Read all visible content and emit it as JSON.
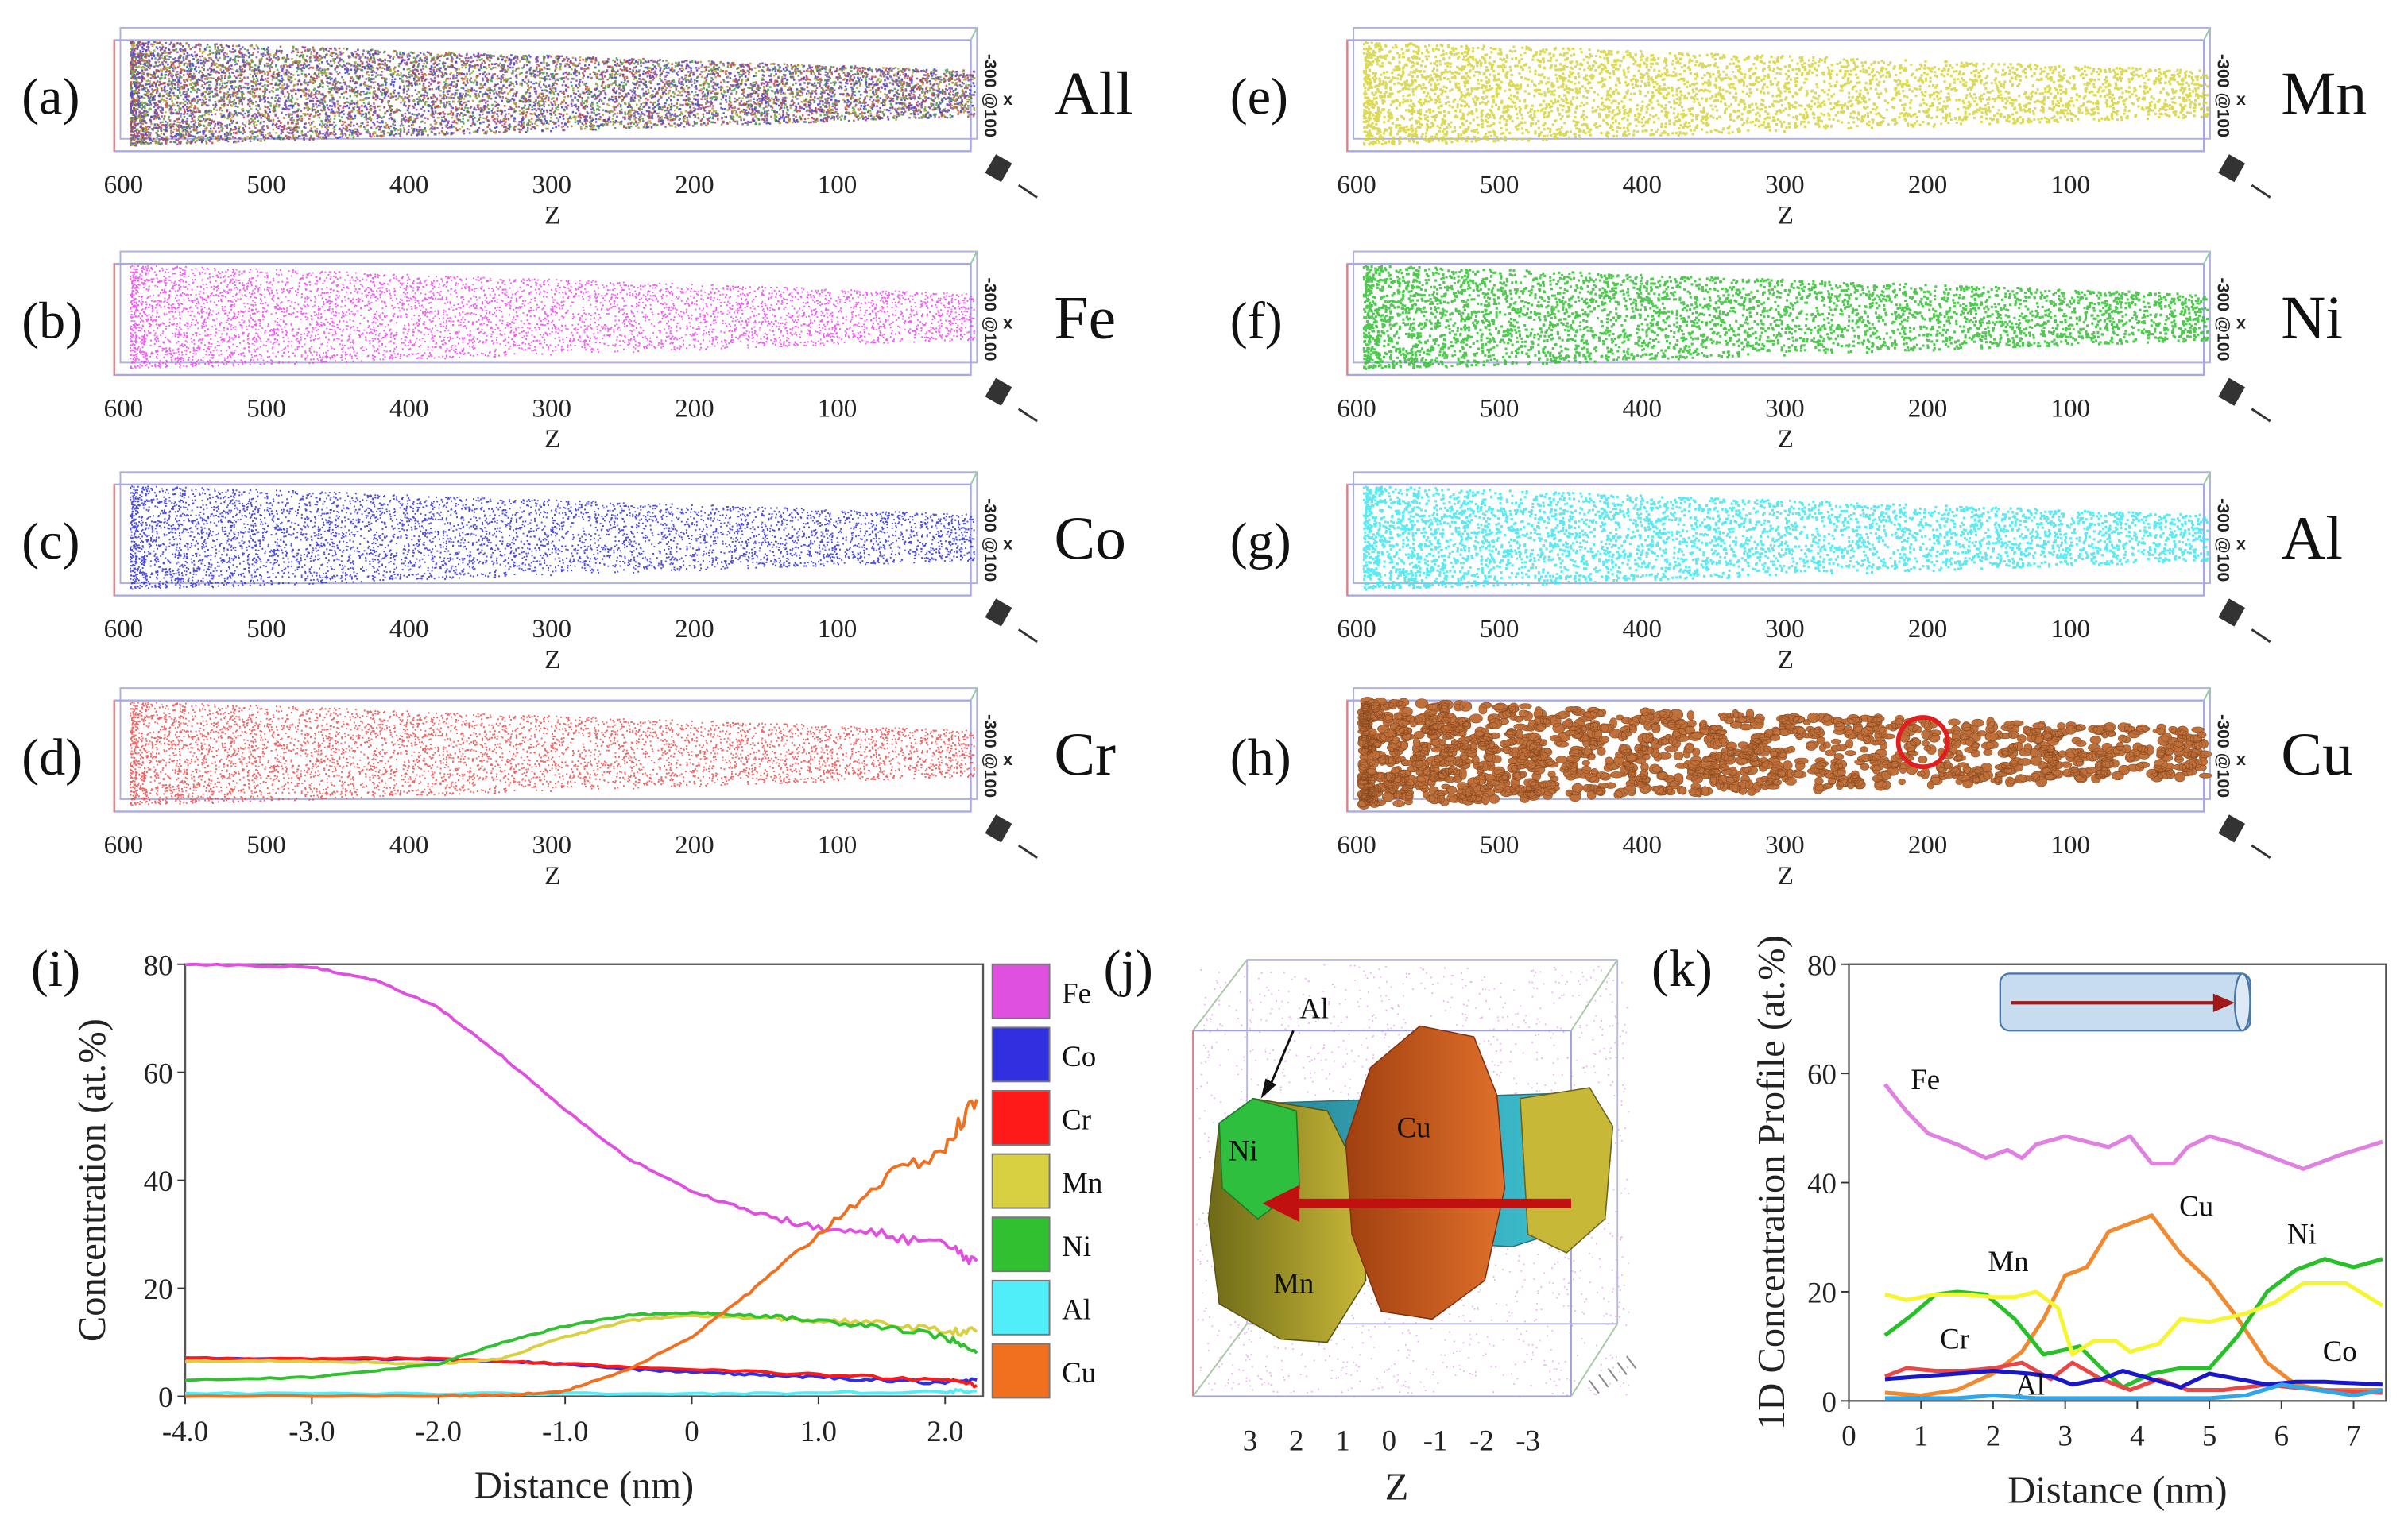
{
  "apt_panels": [
    {
      "label": "(a)",
      "element": "All",
      "color": "#8a4a90",
      "z_ticks": [
        "600",
        "500",
        "400",
        "300",
        "200",
        "100"
      ],
      "z_label": "Z",
      "side_label": "-300 @100",
      "side_axis": "x"
    },
    {
      "label": "(b)",
      "element": "Fe",
      "color": "#f040f0",
      "z_ticks": [
        "600",
        "500",
        "400",
        "300",
        "200",
        "100"
      ],
      "z_label": "Z",
      "side_label": "-300 @100",
      "side_axis": "x"
    },
    {
      "label": "(c)",
      "element": "Co",
      "color": "#2a2ae0",
      "z_ticks": [
        "600",
        "500",
        "400",
        "300",
        "200",
        "100"
      ],
      "z_label": "Z",
      "side_label": "-300 @100",
      "side_axis": "x"
    },
    {
      "label": "(d)",
      "element": "Cr",
      "color": "#f04848",
      "z_ticks": [
        "600",
        "500",
        "400",
        "300",
        "200",
        "100"
      ],
      "z_label": "Z",
      "side_label": "-300 @100",
      "side_axis": "x"
    },
    {
      "label": "(e)",
      "element": "Mn",
      "color": "#d6d238",
      "z_ticks": [
        "600",
        "500",
        "400",
        "300",
        "200",
        "100"
      ],
      "z_label": "Z",
      "side_label": "-300 @100",
      "side_axis": "x"
    },
    {
      "label": "(f)",
      "element": "Ni",
      "color": "#30c030",
      "z_ticks": [
        "600",
        "500",
        "400",
        "300",
        "200",
        "100"
      ],
      "z_label": "Z",
      "side_label": "-300 @100",
      "side_axis": "x"
    },
    {
      "label": "(g)",
      "element": "Al",
      "color": "#40e6f0",
      "z_ticks": [
        "600",
        "500",
        "400",
        "300",
        "200",
        "100"
      ],
      "z_label": "Z",
      "side_label": "-300 @100",
      "side_axis": "x"
    },
    {
      "label": "(h)",
      "element": "Cu",
      "color": "#c0703a",
      "z_ticks": [
        "600",
        "500",
        "400",
        "300",
        "200",
        "100"
      ],
      "z_label": "Z",
      "side_label": "-300 @100",
      "side_axis": "x"
    }
  ],
  "highlight_color": "#e02020",
  "iso_panel": {
    "label": "(j)",
    "labels": {
      "al": "Al",
      "ni": "Ni",
      "cu": "Cu",
      "mn": "Mn"
    },
    "z_ticks": [
      "3",
      "2",
      "1",
      "0",
      "-1",
      "-2",
      "-3"
    ],
    "z_label": "Z",
    "colors": {
      "cu": "#e0702a",
      "ni": "#2fbf3f",
      "mn": "#c8b838",
      "al": "#40c8d8",
      "arrow": "#c01010"
    }
  },
  "chart_data": [
    {
      "type": "line",
      "panel_label": "(i)",
      "title": "",
      "xlabel": "Distance (nm)",
      "ylabel": "Concentration (at.%)",
      "xlim": [
        -4.0,
        2.3
      ],
      "ylim": [
        0,
        80
      ],
      "x_ticks": [
        "-4.0",
        "-3.0",
        "-2.0",
        "-1.0",
        "0",
        "1.0",
        "2.0"
      ],
      "x_tick_values": [
        -4,
        -3,
        -2,
        -1,
        0,
        1,
        2
      ],
      "y_ticks": [
        "0",
        "20",
        "40",
        "60",
        "80"
      ],
      "y_tick_values": [
        0,
        20,
        40,
        60,
        80
      ],
      "legend_position": "right",
      "series": [
        {
          "name": "Fe",
          "color": "#e050e0",
          "points": [
            [
              -4,
              80
            ],
            [
              -3,
              79.5
            ],
            [
              -2.5,
              77
            ],
            [
              -2,
              72
            ],
            [
              -1.5,
              63
            ],
            [
              -1,
              53
            ],
            [
              -0.5,
              44
            ],
            [
              0,
              38
            ],
            [
              0.5,
              34
            ],
            [
              1,
              31
            ],
            [
              1.5,
              30
            ],
            [
              2,
              28
            ],
            [
              2.25,
              25
            ]
          ]
        },
        {
          "name": "Co",
          "color": "#3030e0",
          "points": [
            [
              -4,
              7
            ],
            [
              -3,
              7
            ],
            [
              -2,
              6.8
            ],
            [
              -1.5,
              6.5
            ],
            [
              -1,
              6
            ],
            [
              -0.5,
              5
            ],
            [
              0,
              4.5
            ],
            [
              0.5,
              4
            ],
            [
              1,
              3.5
            ],
            [
              1.5,
              3
            ],
            [
              2,
              2.5
            ],
            [
              2.25,
              3
            ]
          ]
        },
        {
          "name": "Cr",
          "color": "#ff1a1a",
          "points": [
            [
              -4,
              7
            ],
            [
              -3,
              7
            ],
            [
              -2,
              7
            ],
            [
              -1,
              6
            ],
            [
              0,
              5
            ],
            [
              1,
              4
            ],
            [
              2,
              3
            ],
            [
              2.25,
              2
            ]
          ]
        },
        {
          "name": "Mn",
          "color": "#d8d040",
          "points": [
            [
              -4,
              6.5
            ],
            [
              -3,
              6.5
            ],
            [
              -2,
              6
            ],
            [
              -1.5,
              7
            ],
            [
              -1,
              11
            ],
            [
              -0.5,
              14
            ],
            [
              0,
              15
            ],
            [
              0.5,
              14.5
            ],
            [
              1,
              14
            ],
            [
              1.5,
              13.5
            ],
            [
              2,
              12
            ],
            [
              2.25,
              12
            ]
          ]
        },
        {
          "name": "Ni",
          "color": "#30c030",
          "points": [
            [
              -4,
              3
            ],
            [
              -3,
              3.5
            ],
            [
              -2,
              6
            ],
            [
              -1.5,
              10
            ],
            [
              -1,
              13
            ],
            [
              -0.5,
              15
            ],
            [
              0,
              15.5
            ],
            [
              0.5,
              15
            ],
            [
              1,
              14
            ],
            [
              1.5,
              13
            ],
            [
              2,
              11
            ],
            [
              2.25,
              8
            ]
          ]
        },
        {
          "name": "Al",
          "color": "#50eef8",
          "points": [
            [
              -4,
              0.5
            ],
            [
              -2,
              0.5
            ],
            [
              0,
              0.5
            ],
            [
              1,
              0.6
            ],
            [
              2,
              1
            ],
            [
              2.25,
              1
            ]
          ]
        },
        {
          "name": "Cu",
          "color": "#f07020",
          "points": [
            [
              -4,
              0
            ],
            [
              -2,
              0
            ],
            [
              -1.5,
              0.2
            ],
            [
              -1,
              1
            ],
            [
              -0.5,
              5
            ],
            [
              0,
              11
            ],
            [
              0.5,
              20
            ],
            [
              1,
              30
            ],
            [
              1.5,
              40
            ],
            [
              2,
              46
            ],
            [
              2.25,
              55
            ]
          ]
        }
      ]
    },
    {
      "type": "line",
      "panel_label": "(k)",
      "title": "",
      "xlabel": "Distance (nm)",
      "ylabel": "1D Concentration Profile (at.%)",
      "xlim": [
        0,
        7.45
      ],
      "ylim": [
        0,
        80
      ],
      "x_ticks": [
        "0",
        "1",
        "2",
        "3",
        "4",
        "5",
        "6",
        "7"
      ],
      "x_tick_values": [
        0,
        1,
        2,
        3,
        4,
        5,
        6,
        7
      ],
      "y_ticks": [
        "0",
        "20",
        "40",
        "60",
        "80"
      ],
      "y_tick_values": [
        0,
        20,
        40,
        60,
        80
      ],
      "legend_position": "inline labels",
      "series": [
        {
          "name": "Fe",
          "color": "#e080e0",
          "points": [
            [
              0.5,
              58
            ],
            [
              0.8,
              53
            ],
            [
              1.1,
              49
            ],
            [
              1.5,
              47
            ],
            [
              1.9,
              44.5
            ],
            [
              2.2,
              46
            ],
            [
              2.4,
              44.5
            ],
            [
              2.6,
              47
            ],
            [
              3,
              48.5
            ],
            [
              3.3,
              47.5
            ],
            [
              3.6,
              46.5
            ],
            [
              3.9,
              48.5
            ],
            [
              4.2,
              43.5
            ],
            [
              4.5,
              43.5
            ],
            [
              4.7,
              46.5
            ],
            [
              5,
              48.5
            ],
            [
              5.4,
              47
            ],
            [
              5.8,
              45
            ],
            [
              6.3,
              42.5
            ],
            [
              6.8,
              45
            ],
            [
              7.4,
              47.5
            ]
          ]
        },
        {
          "name": "Cu",
          "color": "#f08a30",
          "points": [
            [
              0.5,
              1.5
            ],
            [
              1,
              1
            ],
            [
              1.5,
              2
            ],
            [
              2,
              5
            ],
            [
              2.4,
              9
            ],
            [
              2.7,
              15
            ],
            [
              3,
              23
            ],
            [
              3.3,
              24.5
            ],
            [
              3.6,
              31
            ],
            [
              3.8,
              32
            ],
            [
              4.2,
              34
            ],
            [
              4.6,
              27
            ],
            [
              5,
              22
            ],
            [
              5.4,
              15
            ],
            [
              5.8,
              7
            ],
            [
              6.2,
              3
            ],
            [
              6.6,
              2
            ],
            [
              7.4,
              2
            ]
          ]
        },
        {
          "name": "Ni",
          "color": "#28c028",
          "points": [
            [
              0.5,
              12
            ],
            [
              0.9,
              16
            ],
            [
              1.2,
              19.5
            ],
            [
              1.5,
              20
            ],
            [
              1.9,
              19.5
            ],
            [
              2.3,
              15
            ],
            [
              2.7,
              8.5
            ],
            [
              3.2,
              10
            ],
            [
              3.5,
              6
            ],
            [
              3.8,
              2.5
            ],
            [
              4.2,
              5
            ],
            [
              4.6,
              6
            ],
            [
              5,
              6
            ],
            [
              5.4,
              12
            ],
            [
              5.8,
              20
            ],
            [
              6.2,
              24
            ],
            [
              6.6,
              26
            ],
            [
              7,
              24.5
            ],
            [
              7.4,
              26
            ]
          ]
        },
        {
          "name": "Mn",
          "color": "#f5f530",
          "points": [
            [
              0.5,
              19.5
            ],
            [
              0.8,
              18.5
            ],
            [
              1.2,
              19.5
            ],
            [
              1.6,
              19.5
            ],
            [
              2,
              19
            ],
            [
              2.3,
              19
            ],
            [
              2.6,
              20
            ],
            [
              2.9,
              17
            ],
            [
              3.1,
              8.5
            ],
            [
              3.4,
              11
            ],
            [
              3.7,
              11
            ],
            [
              3.9,
              9
            ],
            [
              4.3,
              10.5
            ],
            [
              4.6,
              15
            ],
            [
              5,
              14.5
            ],
            [
              5.5,
              16
            ],
            [
              5.9,
              18
            ],
            [
              6.3,
              21.5
            ],
            [
              6.9,
              21.5
            ],
            [
              7.4,
              17.5
            ]
          ]
        },
        {
          "name": "Cr",
          "color": "#e84848",
          "points": [
            [
              0.5,
              4.5
            ],
            [
              0.8,
              6
            ],
            [
              1.2,
              5.5
            ],
            [
              1.6,
              5.5
            ],
            [
              2,
              6
            ],
            [
              2.4,
              7
            ],
            [
              2.8,
              4
            ],
            [
              3.1,
              7
            ],
            [
              3.5,
              4
            ],
            [
              3.9,
              2
            ],
            [
              4.3,
              4
            ],
            [
              4.7,
              2
            ],
            [
              5.2,
              2
            ],
            [
              5.8,
              3
            ],
            [
              6.5,
              2
            ],
            [
              7.4,
              1.5
            ]
          ]
        },
        {
          "name": "Co",
          "color": "#1818c8",
          "points": [
            [
              0.5,
              4
            ],
            [
              1,
              4.5
            ],
            [
              1.5,
              5
            ],
            [
              2,
              5.5
            ],
            [
              2.5,
              5
            ],
            [
              2.8,
              4.5
            ],
            [
              3.1,
              3
            ],
            [
              3.5,
              4
            ],
            [
              3.8,
              5.5
            ],
            [
              4.2,
              4
            ],
            [
              4.6,
              2.5
            ],
            [
              5,
              5
            ],
            [
              5.4,
              4
            ],
            [
              5.8,
              3
            ],
            [
              6.2,
              3.5
            ],
            [
              6.6,
              3.5
            ],
            [
              7.4,
              3
            ]
          ]
        },
        {
          "name": "Al",
          "color": "#30a8e8",
          "points": [
            [
              0.5,
              0.5
            ],
            [
              1.5,
              0.5
            ],
            [
              2,
              1
            ],
            [
              2.6,
              0.5
            ],
            [
              3.5,
              0.5
            ],
            [
              5,
              0.5
            ],
            [
              5.5,
              1
            ],
            [
              6,
              3
            ],
            [
              6.5,
              2
            ],
            [
              7,
              1
            ],
            [
              7.4,
              2
            ]
          ]
        }
      ],
      "inline_labels": [
        "Fe",
        "Cu",
        "Mn",
        "Ni",
        "Cr",
        "Al",
        "Co"
      ]
    }
  ]
}
